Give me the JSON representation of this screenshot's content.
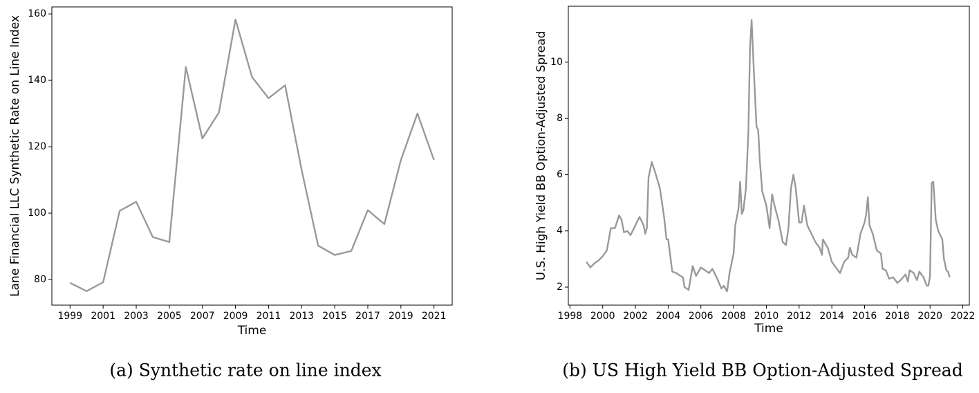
{
  "chart_data": [
    {
      "type": "line",
      "caption": "(a) Synthetic rate on line index",
      "xlabel": "Time",
      "ylabel": "Lane Financial LLC Synthetic Rate on Line Index",
      "color": "#999999",
      "x": [
        1999,
        2000,
        2001,
        2002,
        2003,
        2004,
        2005,
        2006,
        2007,
        2008,
        2009,
        2010,
        2011,
        2012,
        2013,
        2014,
        2015,
        2016,
        2017,
        2018,
        2019,
        2020,
        2021
      ],
      "values": [
        79,
        76.5,
        79.2,
        100.7,
        103.4,
        92.8,
        91.3,
        144,
        122.5,
        130.3,
        158.3,
        141,
        134.6,
        138.5,
        113,
        90.2,
        87.4,
        88.6,
        100.9,
        96.7,
        116,
        130,
        116
      ],
      "xlim": [
        1997.9,
        2022.1
      ],
      "ylim": [
        72.3,
        162.1
      ],
      "xticks": [
        1999,
        2001,
        2003,
        2005,
        2007,
        2009,
        2011,
        2013,
        2015,
        2017,
        2019,
        2021
      ],
      "yticks": [
        80,
        100,
        120,
        140,
        160
      ]
    },
    {
      "type": "line",
      "caption": "(b) US High Yield BB Option-Adjusted Spread",
      "xlabel": "Time",
      "ylabel": "U.S. High Yield BB Option-Adjusted Spread",
      "color": "#999999",
      "x": [
        1999.0,
        1999.25,
        1999.5,
        1999.75,
        2000.0,
        2000.25,
        2000.5,
        2000.75,
        2001.0,
        2001.15,
        2001.3,
        2001.5,
        2001.7,
        2002.0,
        2002.25,
        2002.5,
        2002.6,
        2002.7,
        2002.8,
        2003.0,
        2003.25,
        2003.5,
        2003.75,
        2003.9,
        2004.0,
        2004.25,
        2004.5,
        2004.75,
        2004.9,
        2005.0,
        2005.25,
        2005.5,
        2005.7,
        2006.0,
        2006.25,
        2006.5,
        2006.7,
        2007.0,
        2007.25,
        2007.4,
        2007.6,
        2007.75,
        2008.0,
        2008.1,
        2008.3,
        2008.4,
        2008.5,
        2008.6,
        2008.75,
        2008.9,
        2009.0,
        2009.1,
        2009.25,
        2009.4,
        2009.5,
        2009.6,
        2009.75,
        2010.0,
        2010.2,
        2010.35,
        2010.5,
        2010.75,
        2011.0,
        2011.2,
        2011.35,
        2011.5,
        2011.65,
        2011.8,
        2012.0,
        2012.15,
        2012.3,
        2012.5,
        2012.75,
        2013.0,
        2013.25,
        2013.4,
        2013.45,
        2013.75,
        2014.0,
        2014.25,
        2014.5,
        2014.75,
        2015.0,
        2015.1,
        2015.25,
        2015.5,
        2015.75,
        2016.0,
        2016.1,
        2016.2,
        2016.3,
        2016.5,
        2016.75,
        2017.0,
        2017.1,
        2017.3,
        2017.5,
        2017.75,
        2018.0,
        2018.2,
        2018.5,
        2018.65,
        2018.75,
        2019.0,
        2019.2,
        2019.35,
        2019.6,
        2019.8,
        2019.9,
        2020.0,
        2020.1,
        2020.2,
        2020.35,
        2020.5,
        2020.75,
        2020.85,
        2021.0,
        2021.1,
        2021.2
      ],
      "values": [
        2.9,
        2.7,
        2.85,
        2.95,
        3.1,
        3.3,
        4.1,
        4.1,
        4.55,
        4.4,
        3.95,
        4.0,
        3.85,
        4.2,
        4.5,
        4.2,
        3.9,
        4.1,
        5.9,
        6.45,
        6.0,
        5.5,
        4.5,
        3.7,
        3.7,
        2.55,
        2.5,
        2.4,
        2.35,
        2.0,
        1.9,
        2.75,
        2.4,
        2.7,
        2.6,
        2.5,
        2.65,
        2.3,
        1.95,
        2.05,
        1.85,
        2.5,
        3.2,
        4.2,
        4.8,
        5.75,
        4.6,
        4.75,
        5.5,
        7.5,
        10.5,
        11.5,
        9.5,
        7.7,
        7.6,
        6.5,
        5.4,
        4.9,
        4.1,
        5.3,
        4.9,
        4.35,
        3.6,
        3.5,
        4.1,
        5.5,
        6.0,
        5.5,
        4.3,
        4.3,
        4.9,
        4.2,
        3.9,
        3.6,
        3.4,
        3.15,
        3.7,
        3.4,
        2.9,
        2.7,
        2.5,
        2.9,
        3.05,
        3.4,
        3.15,
        3.05,
        3.9,
        4.3,
        4.6,
        5.2,
        4.2,
        3.9,
        3.3,
        3.2,
        2.65,
        2.6,
        2.3,
        2.35,
        2.15,
        2.25,
        2.45,
        2.2,
        2.6,
        2.5,
        2.25,
        2.55,
        2.35,
        2.05,
        2.05,
        2.4,
        5.7,
        5.75,
        4.4,
        4.0,
        3.7,
        3.0,
        2.6,
        2.55,
        2.35
      ],
      "xlim": [
        1997.9,
        2022.4
      ],
      "ylim": [
        1.36,
        11.99
      ],
      "xticks": [
        1998,
        2000,
        2002,
        2004,
        2006,
        2008,
        2010,
        2012,
        2014,
        2016,
        2018,
        2020,
        2022
      ],
      "yticks": [
        2,
        4,
        6,
        8,
        10
      ]
    }
  ]
}
